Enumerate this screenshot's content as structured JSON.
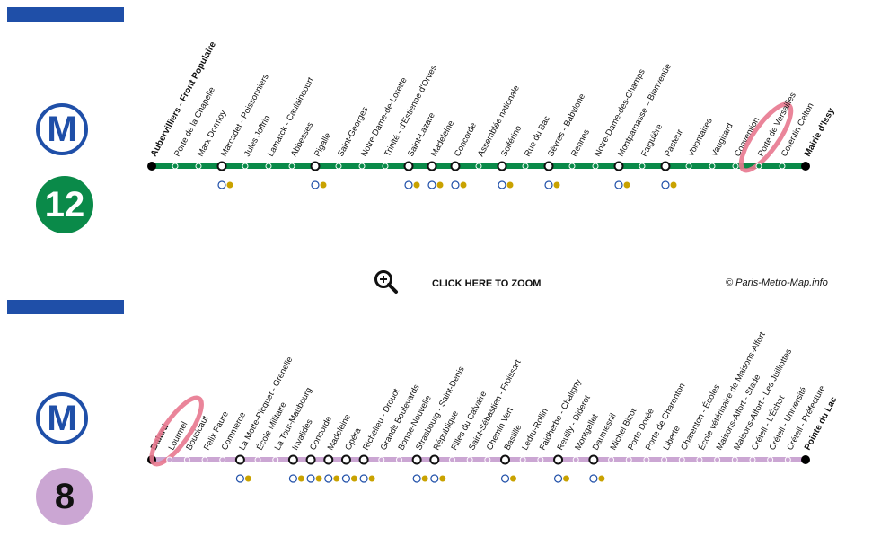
{
  "credit": "© Paris-Metro-Map.info",
  "zoom_label": "CLICK HERE TO ZOOM",
  "lines": [
    {
      "id": "12",
      "badge": "12",
      "metro_symbol": "M",
      "color": "#0a8a49",
      "badge_text_color": "#ffffff",
      "highlight_color": "#e8788f",
      "highlighted_station": "Porte de Versailles",
      "terminus_start": "Aubervilliers - Front Populaire",
      "terminus_end": "Mairie d'Issy",
      "stations": [
        {
          "name": "Aubervilliers - Front Populaire",
          "terminus": true
        },
        {
          "name": "Porte de la Chapelle"
        },
        {
          "name": "Marx Dormoy"
        },
        {
          "name": "Marcadet - Poissonniers",
          "transfer": true
        },
        {
          "name": "Jules Joffrin"
        },
        {
          "name": "Lamarck - Caulaincourt"
        },
        {
          "name": "Abbesses"
        },
        {
          "name": "Pigalle",
          "transfer": true
        },
        {
          "name": "Saint-Georges"
        },
        {
          "name": "Notre-Dame-de-Lorette"
        },
        {
          "name": "Trinité - d'Estienne d'Orves"
        },
        {
          "name": "Saint-Lazare",
          "transfer": true
        },
        {
          "name": "Madeleine",
          "transfer": true
        },
        {
          "name": "Concorde",
          "transfer": true
        },
        {
          "name": "Assemblée nationale"
        },
        {
          "name": "Solférino",
          "transfer": true
        },
        {
          "name": "Rue du Bac"
        },
        {
          "name": "Sèvres - Babylone",
          "transfer": true
        },
        {
          "name": "Rennes"
        },
        {
          "name": "Notre-Dame-des-Champs"
        },
        {
          "name": "Montparnasse – Bienvenüe",
          "transfer": true
        },
        {
          "name": "Falguière"
        },
        {
          "name": "Pasteur",
          "transfer": true
        },
        {
          "name": "Volontaires"
        },
        {
          "name": "Vaugirard"
        },
        {
          "name": "Convention"
        },
        {
          "name": "Porte de Versailles"
        },
        {
          "name": "Corentin Celton"
        },
        {
          "name": "Mairie d'Issy",
          "terminus": true
        }
      ]
    },
    {
      "id": "8",
      "badge": "8",
      "metro_symbol": "M",
      "color": "#cba6d3",
      "badge_text_color": "#111111",
      "highlight_color": "#e8788f",
      "highlighted_station": "Lourmel",
      "terminus_start": "Balard",
      "terminus_end": "Pointe du Lac",
      "stations": [
        {
          "name": "Balard",
          "terminus": true
        },
        {
          "name": "Lourmel"
        },
        {
          "name": "Boucicaut"
        },
        {
          "name": "Félix Faure"
        },
        {
          "name": "Commerce"
        },
        {
          "name": "La Motte-Picquet - Grenelle",
          "transfer": true
        },
        {
          "name": "École Militaire"
        },
        {
          "name": "La Tour-Maubourg"
        },
        {
          "name": "Invalides",
          "transfer": true
        },
        {
          "name": "Concorde",
          "transfer": true
        },
        {
          "name": "Madeleine",
          "transfer": true
        },
        {
          "name": "Opéra",
          "transfer": true
        },
        {
          "name": "Richelieu - Drouot",
          "transfer": true
        },
        {
          "name": "Grands Boulevards"
        },
        {
          "name": "Bonne-Nouvelle"
        },
        {
          "name": "Strasbourg - Saint-Denis",
          "transfer": true
        },
        {
          "name": "République",
          "transfer": true
        },
        {
          "name": "Filles du Calvaire"
        },
        {
          "name": "Saint-Sébastien - Froissart"
        },
        {
          "name": "Chemin Vert"
        },
        {
          "name": "Bastille",
          "transfer": true
        },
        {
          "name": "Ledru-Rollin"
        },
        {
          "name": "Faidherbe - Chaligny"
        },
        {
          "name": "Reuilly - Diderot",
          "transfer": true
        },
        {
          "name": "Montgallet"
        },
        {
          "name": "Daumesnil",
          "transfer": true
        },
        {
          "name": "Michel Bizot"
        },
        {
          "name": "Porte Dorée"
        },
        {
          "name": "Porte de Charenton"
        },
        {
          "name": "Liberté"
        },
        {
          "name": "Charenton - Écoles"
        },
        {
          "name": "École vétérinaire de Maisons-Alfort"
        },
        {
          "name": "Maisons-Alfort - Stade"
        },
        {
          "name": "Maisons-Alfort - Les Juilliottes"
        },
        {
          "name": "Créteil - L'Échat"
        },
        {
          "name": "Créteil - Université"
        },
        {
          "name": "Créteil - Préfecture"
        },
        {
          "name": "Pointe du Lac",
          "terminus": true
        }
      ]
    }
  ]
}
